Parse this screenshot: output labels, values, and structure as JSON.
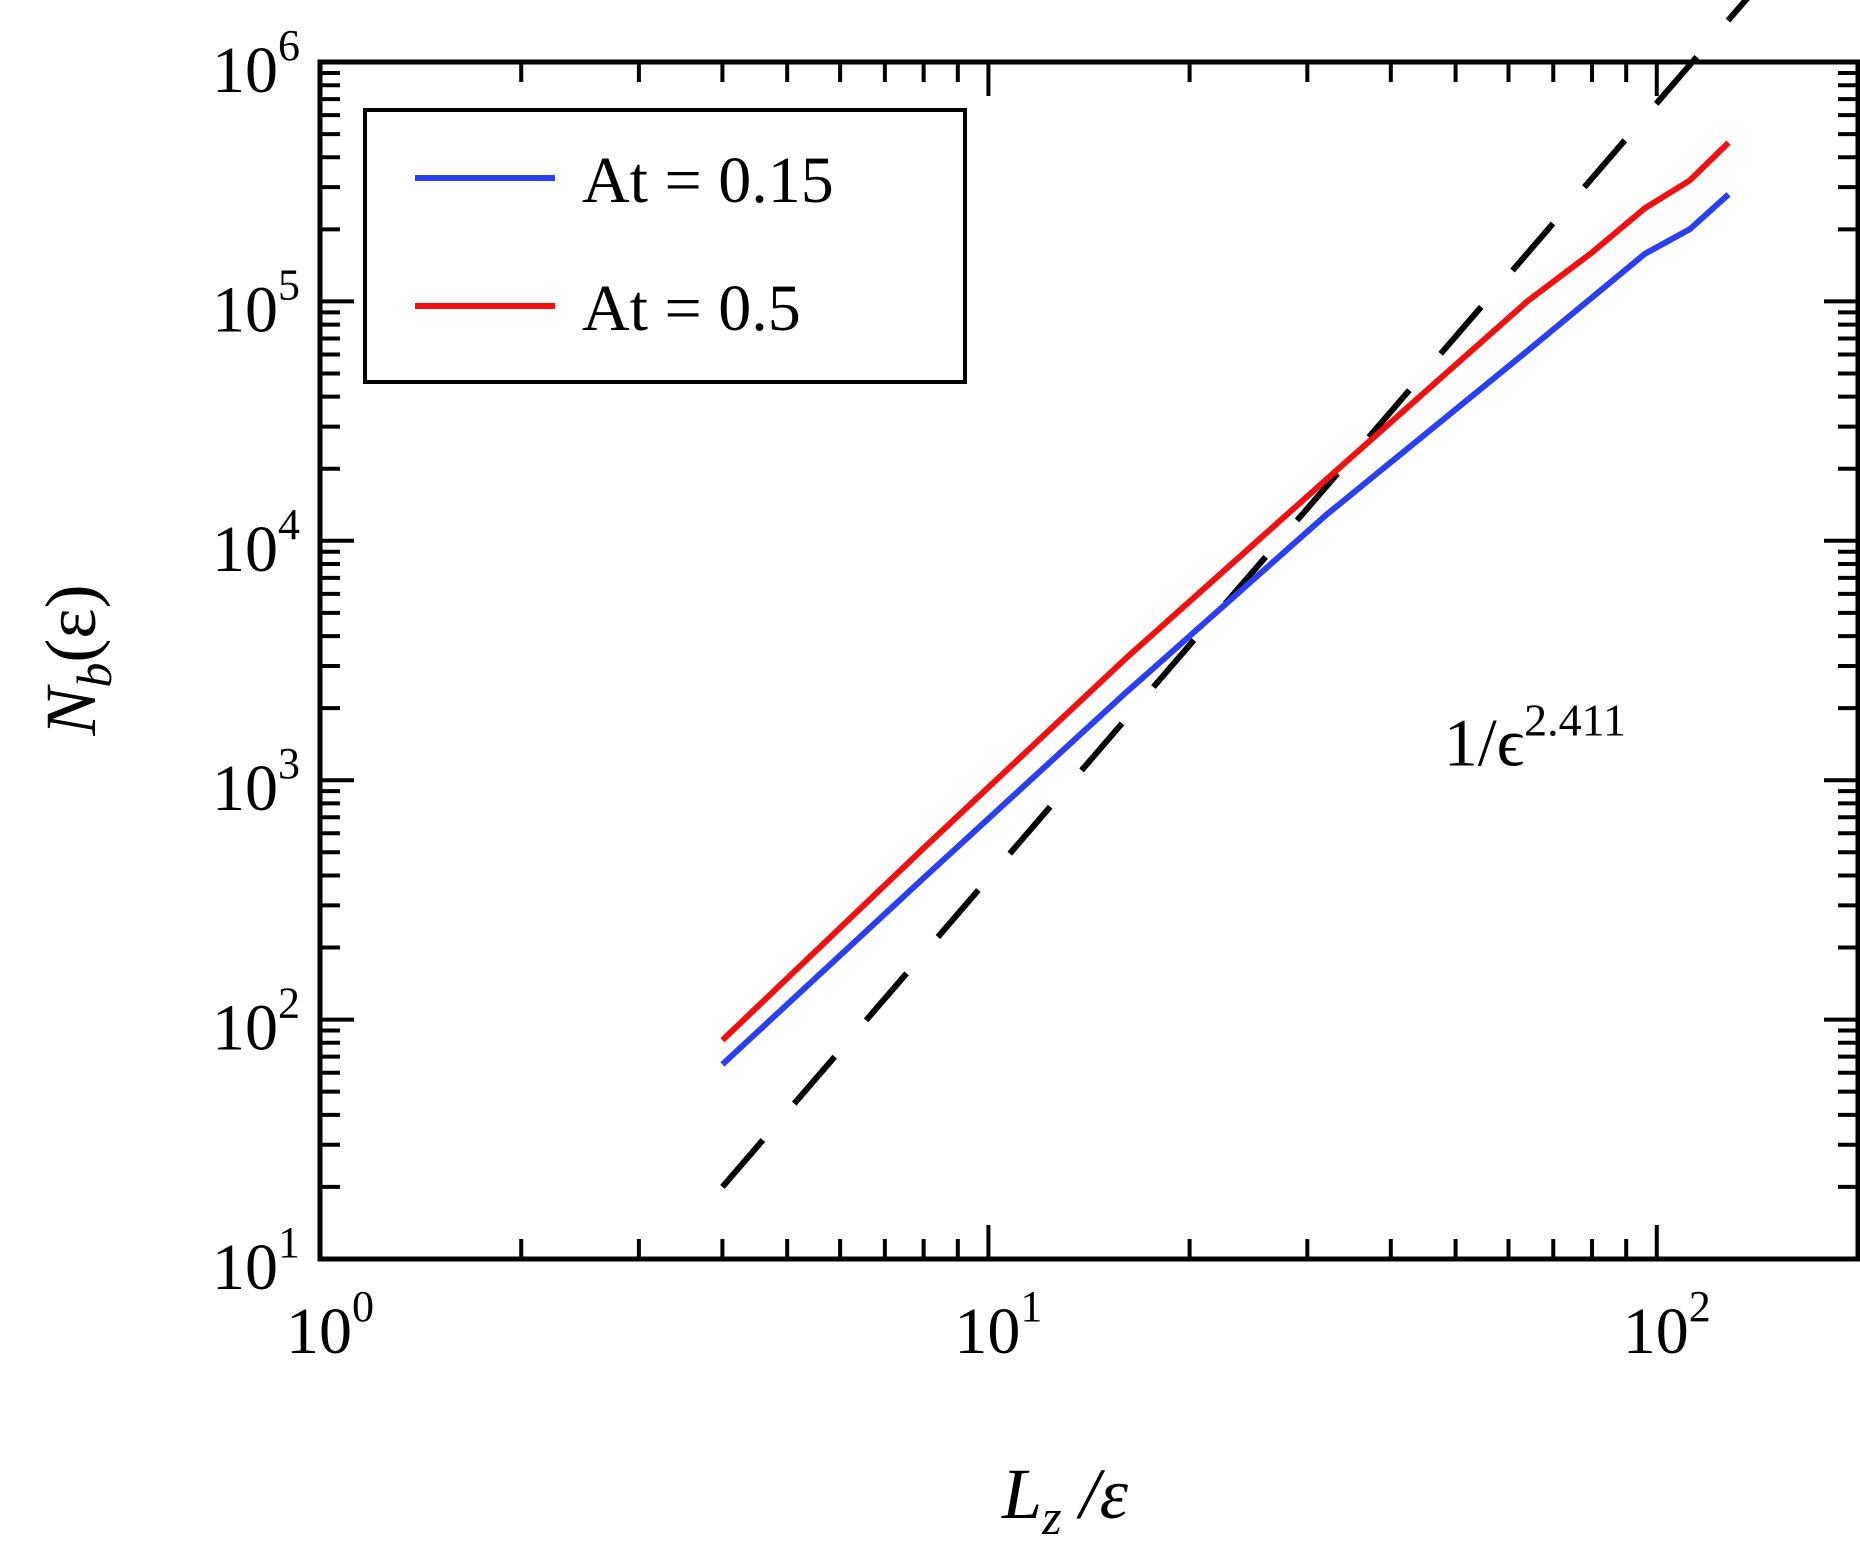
{
  "chart_data": {
    "type": "line",
    "x_scale": "log",
    "y_scale": "log",
    "xlim": [
      1,
      200
    ],
    "ylim": [
      10,
      1000000
    ],
    "x_ticks": [
      {
        "base": "10",
        "exp": "0"
      },
      {
        "base": "10",
        "exp": "1"
      },
      {
        "base": "10",
        "exp": "2"
      }
    ],
    "y_ticks": [
      {
        "base": "10",
        "exp": "1"
      },
      {
        "base": "10",
        "exp": "2"
      },
      {
        "base": "10",
        "exp": "3"
      },
      {
        "base": "10",
        "exp": "4"
      },
      {
        "base": "10",
        "exp": "5"
      },
      {
        "base": "10",
        "exp": "6"
      }
    ],
    "xlabel": {
      "main": "L",
      "sub": "z",
      "rest": " /ε"
    },
    "ylabel": {
      "main": "N",
      "sub": "b",
      "rest": "(ε)"
    },
    "legend_position": "top-left",
    "grid": false,
    "series": [
      {
        "name": "At = 0.15",
        "color": "#2a3ff0",
        "x": [
          4,
          8,
          16,
          32,
          64,
          96,
          112,
          128
        ],
        "y": [
          65,
          390,
          2300,
          12800,
          62000,
          158000,
          200000,
          280000
        ]
      },
      {
        "name": "At = 0.5",
        "color": "#f01010",
        "x": [
          4,
          8,
          16,
          32,
          64,
          80,
          96,
          112,
          128
        ],
        "y": [
          82,
          520,
          3200,
          18000,
          100000,
          160000,
          245000,
          320000,
          460000
        ]
      }
    ],
    "reference_line": {
      "color": "#000000",
      "style": "dashed",
      "x": [
        4,
        200
      ],
      "y": [
        20,
        6350000
      ]
    },
    "annotation": {
      "base": "1/ϵ",
      "exp": "2.411",
      "x": 48,
      "y": 1150
    }
  }
}
